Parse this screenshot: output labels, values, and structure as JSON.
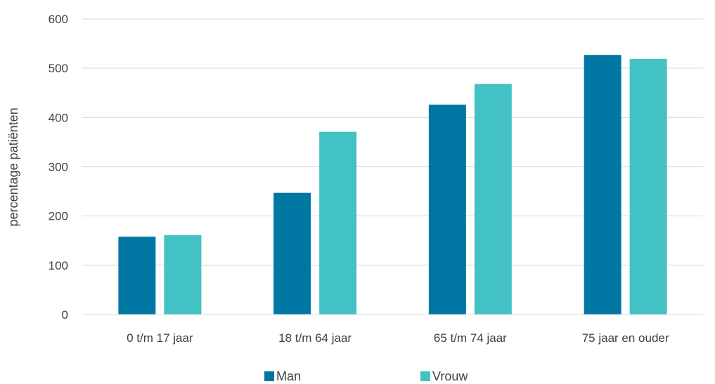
{
  "chart_data": {
    "type": "bar",
    "title": "",
    "xlabel": "",
    "ylabel": "percentage patiënten",
    "categories": [
      "0 t/m 17 jaar",
      "18 t/m 64 jaar",
      "65 t/m 74 jaar",
      "75 jaar en ouder"
    ],
    "series": [
      {
        "name": "Man",
        "values": [
          158,
          247,
          426,
          527
        ],
        "color": "#0077a3"
      },
      {
        "name": "Vrouw",
        "values": [
          161,
          371,
          468,
          519
        ],
        "color": "#43c2c6"
      }
    ],
    "ylim": [
      0,
      600
    ],
    "yticks": [
      0,
      100,
      200,
      300,
      400,
      500,
      600
    ],
    "grid": true,
    "legend_position": "bottom"
  }
}
